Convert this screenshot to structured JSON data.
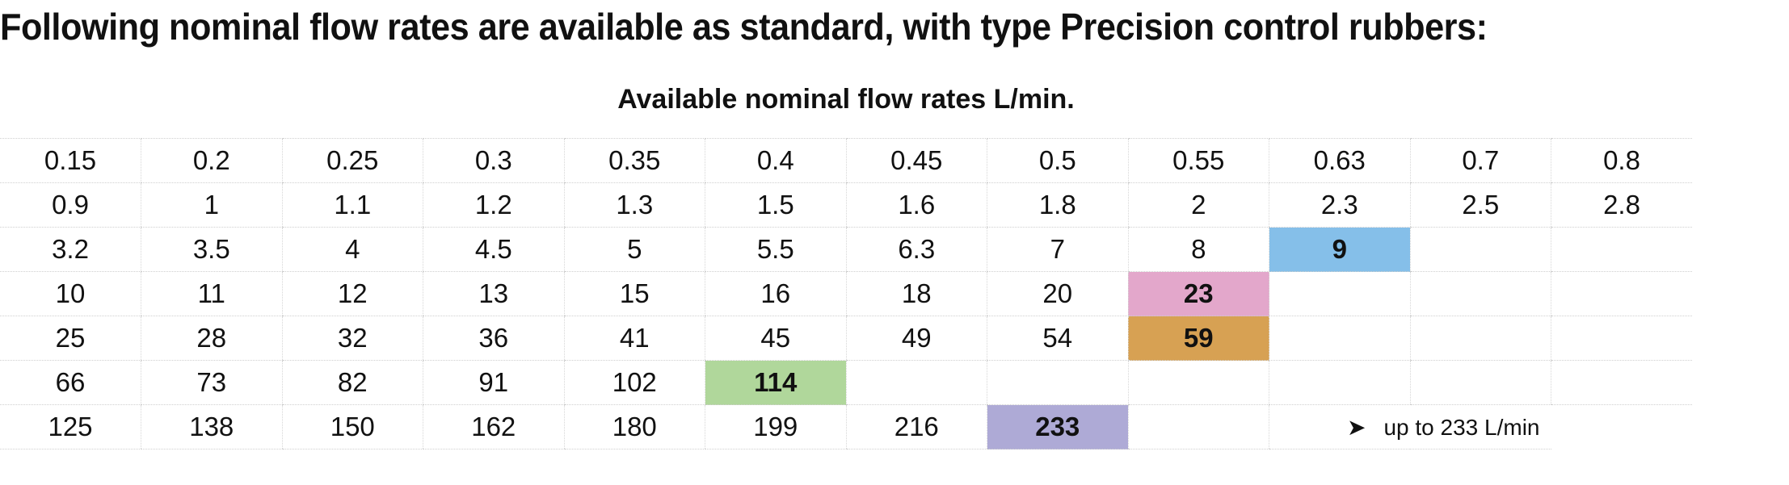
{
  "heading": "Following nominal flow rates are available as standard, with type Precision control rubbers:",
  "caption": "Available nominal flow rates L/min.",
  "colors": {
    "blue": "#85bfe9",
    "pink": "#e3a7cb",
    "orange": "#d7a153",
    "green": "#b0d79b",
    "purple": "#aeaad6"
  },
  "rows": [
    [
      {
        "v": "0.15"
      },
      {
        "v": "0.2"
      },
      {
        "v": "0.25"
      },
      {
        "v": "0.3"
      },
      {
        "v": "0.35"
      },
      {
        "v": "0.4"
      },
      {
        "v": "0.45"
      },
      {
        "v": "0.5"
      },
      {
        "v": "0.55"
      },
      {
        "v": "0.63"
      },
      {
        "v": "0.7"
      },
      {
        "v": "0.8"
      }
    ],
    [
      {
        "v": "0.9"
      },
      {
        "v": "1"
      },
      {
        "v": "1.1"
      },
      {
        "v": "1.2"
      },
      {
        "v": "1.3"
      },
      {
        "v": "1.5"
      },
      {
        "v": "1.6"
      },
      {
        "v": "1.8"
      },
      {
        "v": "2"
      },
      {
        "v": "2.3"
      },
      {
        "v": "2.5"
      },
      {
        "v": "2.8"
      }
    ],
    [
      {
        "v": "3.2"
      },
      {
        "v": "3.5"
      },
      {
        "v": "4"
      },
      {
        "v": "4.5"
      },
      {
        "v": "5"
      },
      {
        "v": "5.5"
      },
      {
        "v": "6.3"
      },
      {
        "v": "7"
      },
      {
        "v": "8"
      },
      {
        "v": "9",
        "hl": "blue"
      },
      {
        "v": ""
      },
      {
        "v": ""
      }
    ],
    [
      {
        "v": "10"
      },
      {
        "v": "11"
      },
      {
        "v": "12"
      },
      {
        "v": "13"
      },
      {
        "v": "15"
      },
      {
        "v": "16"
      },
      {
        "v": "18"
      },
      {
        "v": "20"
      },
      {
        "v": "23",
        "hl": "pink"
      },
      {
        "v": ""
      },
      {
        "v": ""
      },
      {
        "v": ""
      }
    ],
    [
      {
        "v": "25"
      },
      {
        "v": "28"
      },
      {
        "v": "32"
      },
      {
        "v": "36"
      },
      {
        "v": "41"
      },
      {
        "v": "45"
      },
      {
        "v": "49"
      },
      {
        "v": "54"
      },
      {
        "v": "59",
        "hl": "orange"
      },
      {
        "v": ""
      },
      {
        "v": ""
      },
      {
        "v": ""
      }
    ],
    [
      {
        "v": "66"
      },
      {
        "v": "73"
      },
      {
        "v": "82"
      },
      {
        "v": "91"
      },
      {
        "v": "102"
      },
      {
        "v": "114",
        "hl": "green"
      },
      {
        "v": ""
      },
      {
        "v": ""
      },
      {
        "v": ""
      },
      {
        "v": ""
      },
      {
        "v": ""
      },
      {
        "v": ""
      }
    ],
    [
      {
        "v": "125"
      },
      {
        "v": "138"
      },
      {
        "v": "150"
      },
      {
        "v": "162"
      },
      {
        "v": "180"
      },
      {
        "v": "199"
      },
      {
        "v": "216"
      },
      {
        "v": "233",
        "hl": "purple"
      },
      {
        "v": ""
      },
      {
        "v": "up to 233 L/min",
        "note": true,
        "icon": "arrow-right-icon",
        "span": 2
      },
      {
        "v": ""
      }
    ]
  ]
}
